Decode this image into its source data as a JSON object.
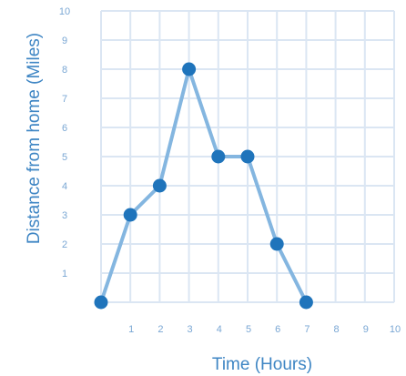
{
  "chart_data": {
    "type": "line",
    "xlabel": "Time (Hours)",
    "ylabel": "Distance from home (Miles)",
    "xlim": [
      0,
      10
    ],
    "ylim": [
      0,
      10
    ],
    "x_ticks": [
      1,
      2,
      3,
      4,
      5,
      6,
      7,
      8,
      9,
      10
    ],
    "y_ticks": [
      1,
      2,
      3,
      4,
      5,
      6,
      7,
      8,
      9,
      10
    ],
    "grid": true,
    "series": [
      {
        "x": [
          0,
          1,
          2,
          3,
          4,
          5,
          6,
          7
        ],
        "values": [
          0,
          3,
          4,
          8,
          5,
          5,
          2,
          0
        ]
      }
    ],
    "colors": {
      "line": "#84b6e0",
      "point": "#1f74bb",
      "grid": "#dbe6f3",
      "tick_text": "#7aa7d4",
      "axis_text": "#3f86c4"
    }
  }
}
